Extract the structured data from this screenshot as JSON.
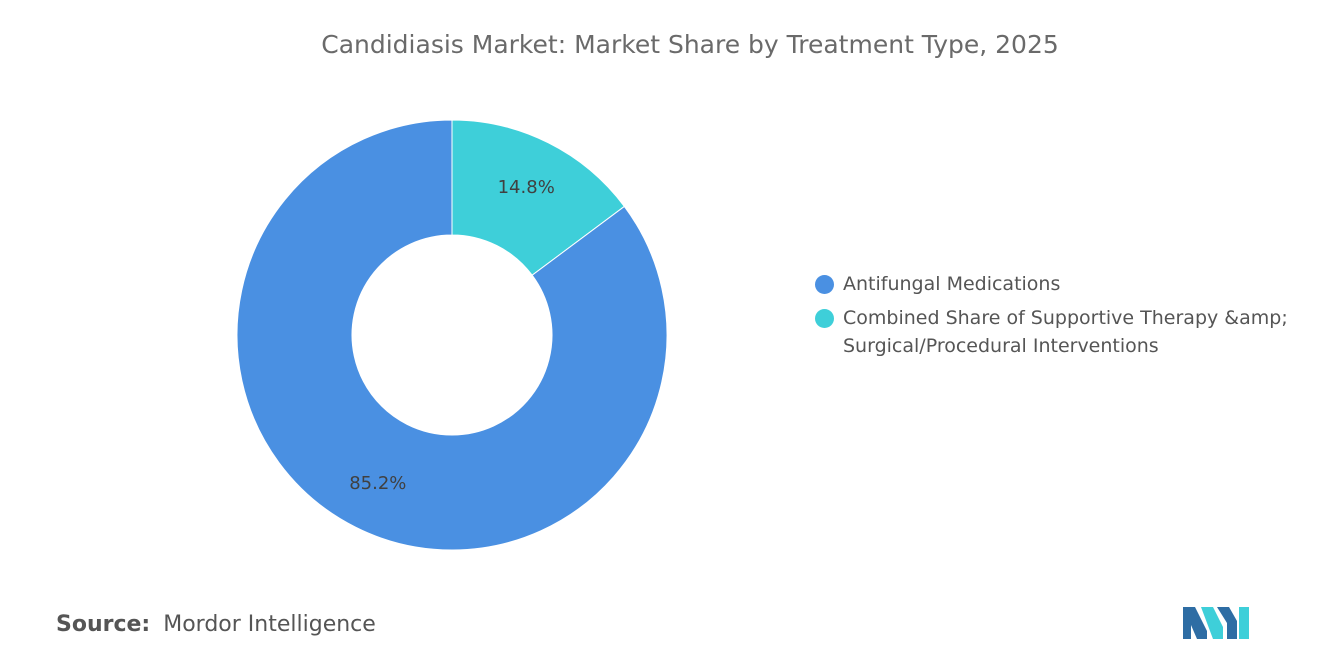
{
  "chart_data": {
    "type": "pie",
    "donut": true,
    "title": "Candidiasis Market: Market Share by Treatment Type, 2025",
    "series": [
      {
        "name": "Antifungal Medications",
        "value": 85.2,
        "label": "85.2%",
        "color": "#4a90e2"
      },
      {
        "name": "Combined Share of Supportive Therapy &amp; Surgical/Procedural Interventions",
        "value": 14.8,
        "label": "14.8%",
        "color": "#3ecfd9"
      }
    ],
    "legend_position": "right"
  },
  "source": {
    "label": "Source:",
    "text": "Mordor Intelligence"
  },
  "logo": {
    "colors": [
      "#2e6da4",
      "#3ecfd9"
    ]
  }
}
